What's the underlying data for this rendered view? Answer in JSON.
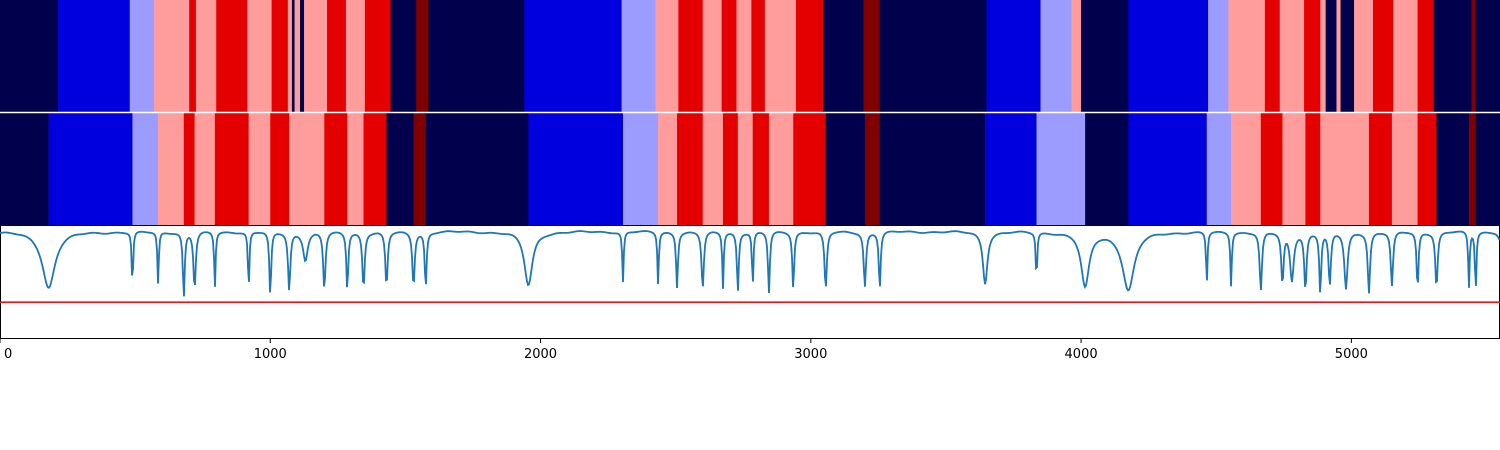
{
  "chart_data": {
    "type": "heatmap",
    "xlim": [
      0,
      5550
    ],
    "x_ticks": [
      0,
      1000,
      2000,
      3000,
      4000,
      5000
    ],
    "x_tick_labels": [
      "0",
      "1000",
      "2000",
      "3000",
      "4000",
      "5000"
    ],
    "grid": false,
    "legend": "none",
    "colors": {
      "navy": "#00004c",
      "blue": "#0000df",
      "lightblue": "#9c9cff",
      "pink": "#ff9c9c",
      "red": "#e50000",
      "darkred": "#800000",
      "signal": "#1f77b4",
      "threshold": "#e41a1c"
    },
    "rows": [
      {
        "segments": [
          [
            0,
            215,
            "navy"
          ],
          [
            215,
            480,
            "blue"
          ],
          [
            480,
            570,
            "lightblue"
          ],
          [
            570,
            700,
            "pink"
          ],
          [
            700,
            725,
            "red"
          ],
          [
            725,
            800,
            "pink"
          ],
          [
            800,
            915,
            "red"
          ],
          [
            915,
            1005,
            "pink"
          ],
          [
            1005,
            1065,
            "red"
          ],
          [
            1065,
            1080,
            "pink"
          ],
          [
            1080,
            1090,
            "navy"
          ],
          [
            1090,
            1110,
            "pink"
          ],
          [
            1110,
            1125,
            "navy"
          ],
          [
            1125,
            1210,
            "pink"
          ],
          [
            1210,
            1280,
            "red"
          ],
          [
            1280,
            1350,
            "pink"
          ],
          [
            1350,
            1445,
            "red"
          ],
          [
            1445,
            1540,
            "navy"
          ],
          [
            1540,
            1585,
            "darkred"
          ],
          [
            1585,
            1940,
            "navy"
          ],
          [
            1940,
            2300,
            "blue"
          ],
          [
            2300,
            2425,
            "lightblue"
          ],
          [
            2425,
            2510,
            "pink"
          ],
          [
            2510,
            2600,
            "red"
          ],
          [
            2600,
            2670,
            "pink"
          ],
          [
            2670,
            2725,
            "red"
          ],
          [
            2725,
            2780,
            "pink"
          ],
          [
            2780,
            2830,
            "red"
          ],
          [
            2830,
            2945,
            "pink"
          ],
          [
            2945,
            3045,
            "red"
          ],
          [
            3045,
            3195,
            "navy"
          ],
          [
            3195,
            3255,
            "darkred"
          ],
          [
            3255,
            3650,
            "navy"
          ],
          [
            3650,
            3850,
            "blue"
          ],
          [
            3850,
            3965,
            "lightblue"
          ],
          [
            3965,
            4000,
            "pink"
          ],
          [
            4000,
            4175,
            "navy"
          ],
          [
            4175,
            4470,
            "blue"
          ],
          [
            4470,
            4545,
            "lightblue"
          ],
          [
            4545,
            4680,
            "pink"
          ],
          [
            4680,
            4735,
            "red"
          ],
          [
            4735,
            4825,
            "pink"
          ],
          [
            4825,
            4885,
            "red"
          ],
          [
            4885,
            4905,
            "pink"
          ],
          [
            4905,
            4945,
            "navy"
          ],
          [
            4945,
            4960,
            "pink"
          ],
          [
            4960,
            5010,
            "navy"
          ],
          [
            5010,
            5080,
            "pink"
          ],
          [
            5080,
            5155,
            "red"
          ],
          [
            5155,
            5245,
            "pink"
          ],
          [
            5245,
            5305,
            "red"
          ],
          [
            5305,
            5445,
            "navy"
          ],
          [
            5445,
            5460,
            "darkred"
          ],
          [
            5460,
            5550,
            "navy"
          ]
        ]
      },
      {
        "segments": [
          [
            0,
            180,
            "navy"
          ],
          [
            180,
            490,
            "blue"
          ],
          [
            490,
            585,
            "lightblue"
          ],
          [
            585,
            680,
            "pink"
          ],
          [
            680,
            720,
            "red"
          ],
          [
            720,
            795,
            "pink"
          ],
          [
            795,
            920,
            "red"
          ],
          [
            920,
            1000,
            "pink"
          ],
          [
            1000,
            1070,
            "red"
          ],
          [
            1070,
            1200,
            "pink"
          ],
          [
            1200,
            1285,
            "red"
          ],
          [
            1285,
            1345,
            "pink"
          ],
          [
            1345,
            1430,
            "red"
          ],
          [
            1430,
            1530,
            "navy"
          ],
          [
            1530,
            1575,
            "darkred"
          ],
          [
            1575,
            1955,
            "navy"
          ],
          [
            1955,
            2305,
            "blue"
          ],
          [
            2305,
            2435,
            "lightblue"
          ],
          [
            2435,
            2505,
            "pink"
          ],
          [
            2505,
            2600,
            "red"
          ],
          [
            2600,
            2675,
            "pink"
          ],
          [
            2675,
            2730,
            "red"
          ],
          [
            2730,
            2785,
            "pink"
          ],
          [
            2785,
            2845,
            "red"
          ],
          [
            2845,
            2935,
            "pink"
          ],
          [
            2935,
            3055,
            "red"
          ],
          [
            3055,
            3200,
            "navy"
          ],
          [
            3200,
            3255,
            "darkred"
          ],
          [
            3255,
            3645,
            "navy"
          ],
          [
            3645,
            3835,
            "blue"
          ],
          [
            3835,
            4015,
            "lightblue"
          ],
          [
            4015,
            4175,
            "navy"
          ],
          [
            4175,
            4465,
            "blue"
          ],
          [
            4465,
            4555,
            "lightblue"
          ],
          [
            4555,
            4665,
            "pink"
          ],
          [
            4665,
            4745,
            "red"
          ],
          [
            4745,
            4830,
            "pink"
          ],
          [
            4830,
            4885,
            "red"
          ],
          [
            4885,
            5065,
            "pink"
          ],
          [
            5065,
            5150,
            "red"
          ],
          [
            5150,
            5245,
            "pink"
          ],
          [
            5245,
            5315,
            "red"
          ],
          [
            5315,
            5435,
            "navy"
          ],
          [
            5435,
            5460,
            "darkred"
          ],
          [
            5460,
            5550,
            "navy"
          ]
        ]
      }
    ],
    "signal": {
      "ylim": [
        0,
        1
      ],
      "baseline": 0.95,
      "threshold": 0.32,
      "dips": [
        [
          180,
          0.45,
          28
        ],
        [
          490,
          0.45,
          3
        ],
        [
          585,
          0.48,
          3
        ],
        [
          680,
          0.36,
          4
        ],
        [
          720,
          0.44,
          5
        ],
        [
          795,
          0.45,
          3
        ],
        [
          920,
          0.42,
          3
        ],
        [
          1000,
          0.37,
          4
        ],
        [
          1070,
          0.43,
          5
        ],
        [
          1130,
          0.7,
          10
        ],
        [
          1200,
          0.44,
          5
        ],
        [
          1285,
          0.43,
          4
        ],
        [
          1345,
          0.45,
          5
        ],
        [
          1430,
          0.46,
          5
        ],
        [
          1530,
          0.47,
          5
        ],
        [
          1575,
          0.45,
          4
        ],
        [
          1955,
          0.47,
          18
        ],
        [
          2305,
          0.5,
          3
        ],
        [
          2435,
          0.48,
          3
        ],
        [
          2505,
          0.46,
          4
        ],
        [
          2600,
          0.44,
          5
        ],
        [
          2675,
          0.45,
          3
        ],
        [
          2730,
          0.42,
          4
        ],
        [
          2785,
          0.45,
          3
        ],
        [
          2845,
          0.4,
          4
        ],
        [
          2935,
          0.44,
          4
        ],
        [
          3055,
          0.43,
          5
        ],
        [
          3200,
          0.46,
          5
        ],
        [
          3255,
          0.44,
          4
        ],
        [
          3645,
          0.49,
          10
        ],
        [
          3835,
          0.52,
          3
        ],
        [
          4015,
          0.46,
          18
        ],
        [
          4175,
          0.43,
          26
        ],
        [
          4465,
          0.48,
          3
        ],
        [
          4555,
          0.47,
          3
        ],
        [
          4665,
          0.42,
          5
        ],
        [
          4745,
          0.49,
          5
        ],
        [
          4780,
          0.52,
          8
        ],
        [
          4830,
          0.44,
          5
        ],
        [
          4885,
          0.4,
          4
        ],
        [
          4920,
          0.47,
          5
        ],
        [
          4980,
          0.44,
          7
        ],
        [
          5065,
          0.41,
          5
        ],
        [
          5150,
          0.46,
          5
        ],
        [
          5245,
          0.43,
          4
        ],
        [
          5315,
          0.45,
          5
        ],
        [
          5435,
          0.45,
          3
        ],
        [
          5460,
          0.4,
          3
        ],
        [
          5550,
          0.88,
          8
        ]
      ]
    }
  }
}
